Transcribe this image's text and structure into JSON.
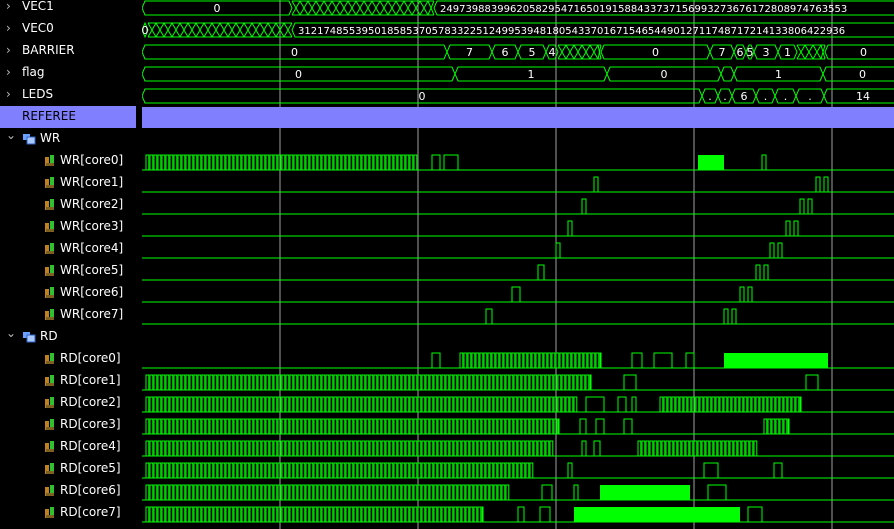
{
  "colors": {
    "wave": "#00ff00",
    "text": "#ffffff",
    "selected": "#8080ff",
    "cursor": "#d8d8d8"
  },
  "signals": [
    {
      "label": "VEC1",
      "kind": "bus",
      "icon": "chevron-right-icon"
    },
    {
      "label": "VEC0",
      "kind": "bus",
      "icon": "chevron-right-icon"
    },
    {
      "label": "BARRIER",
      "kind": "bus",
      "icon": "chevron-right-icon"
    },
    {
      "label": "flag",
      "kind": "bus",
      "icon": "chevron-right-icon"
    },
    {
      "label": "LEDS",
      "kind": "bus",
      "icon": "chevron-right-icon"
    },
    {
      "label": "REFEREE",
      "kind": "selected"
    },
    {
      "label": "WR",
      "kind": "group",
      "icon": "chevron-down-icon"
    },
    {
      "label": "WR[core0]",
      "kind": "bit"
    },
    {
      "label": "WR[core1]",
      "kind": "bit"
    },
    {
      "label": "WR[core2]",
      "kind": "bit"
    },
    {
      "label": "WR[core3]",
      "kind": "bit"
    },
    {
      "label": "WR[core4]",
      "kind": "bit"
    },
    {
      "label": "WR[core5]",
      "kind": "bit"
    },
    {
      "label": "WR[core6]",
      "kind": "bit"
    },
    {
      "label": "WR[core7]",
      "kind": "bit"
    },
    {
      "label": "RD",
      "kind": "group",
      "icon": "chevron-down-icon"
    },
    {
      "label": "RD[core0]",
      "kind": "bit"
    },
    {
      "label": "RD[core1]",
      "kind": "bit"
    },
    {
      "label": "RD[core2]",
      "kind": "bit"
    },
    {
      "label": "RD[core3]",
      "kind": "bit"
    },
    {
      "label": "RD[core4]",
      "kind": "bit"
    },
    {
      "label": "RD[core5]",
      "kind": "bit"
    },
    {
      "label": "RD[core6]",
      "kind": "bit"
    },
    {
      "label": "RD[core7]",
      "kind": "bit"
    }
  ],
  "bus_values": {
    "VEC1": [
      {
        "from": 0,
        "to": 150,
        "text": "0"
      },
      {
        "from": 150,
        "to": 292,
        "text": ""
      },
      {
        "from": 292,
        "to": 760,
        "text": "2497398839962058295471650191588433737156993273676172808974763553"
      }
    ],
    "VEC0": [
      {
        "from": 0,
        "to": 6,
        "text": "0"
      },
      {
        "from": 6,
        "to": 150,
        "text": ""
      },
      {
        "from": 150,
        "to": 760,
        "text": "31217485539501858537057833225124995394818054337016715465449012711748717214133806422936"
      }
    ],
    "BARRIER": [
      {
        "from": 0,
        "to": 305,
        "text": "0"
      },
      {
        "from": 305,
        "to": 350,
        "text": "7"
      },
      {
        "from": 350,
        "to": 376,
        "text": "6"
      },
      {
        "from": 376,
        "to": 404,
        "text": "5"
      },
      {
        "from": 404,
        "to": 416,
        "text": "4"
      },
      {
        "from": 416,
        "to": 459,
        "text": ""
      },
      {
        "from": 459,
        "to": 568,
        "text": "0"
      },
      {
        "from": 568,
        "to": 592,
        "text": "7"
      },
      {
        "from": 592,
        "to": 604,
        "text": "6"
      },
      {
        "from": 604,
        "to": 612,
        "text": "5"
      },
      {
        "from": 612,
        "to": 636,
        "text": "3"
      },
      {
        "from": 636,
        "to": 655,
        "text": "1"
      },
      {
        "from": 655,
        "to": 683,
        "text": ""
      },
      {
        "from": 683,
        "to": 760,
        "text": "0"
      }
    ],
    "flag": [
      {
        "from": 0,
        "to": 313,
        "text": "0"
      },
      {
        "from": 313,
        "to": 465,
        "text": "1"
      },
      {
        "from": 465,
        "to": 579,
        "text": "0"
      },
      {
        "from": 579,
        "to": 592,
        "text": ""
      },
      {
        "from": 592,
        "to": 681,
        "text": "1"
      },
      {
        "from": 681,
        "to": 760,
        "text": "0"
      }
    ],
    "LEDS": [
      {
        "from": 0,
        "to": 560,
        "text": "0"
      },
      {
        "from": 560,
        "to": 576,
        "text": "."
      },
      {
        "from": 576,
        "to": 590,
        "text": "."
      },
      {
        "from": 590,
        "to": 614,
        "text": "6"
      },
      {
        "from": 614,
        "to": 633,
        "text": "."
      },
      {
        "from": 633,
        "to": 654,
        "text": "."
      },
      {
        "from": 654,
        "to": 682,
        "text": "."
      },
      {
        "from": 682,
        "to": 760,
        "text": "14"
      }
    ]
  }
}
